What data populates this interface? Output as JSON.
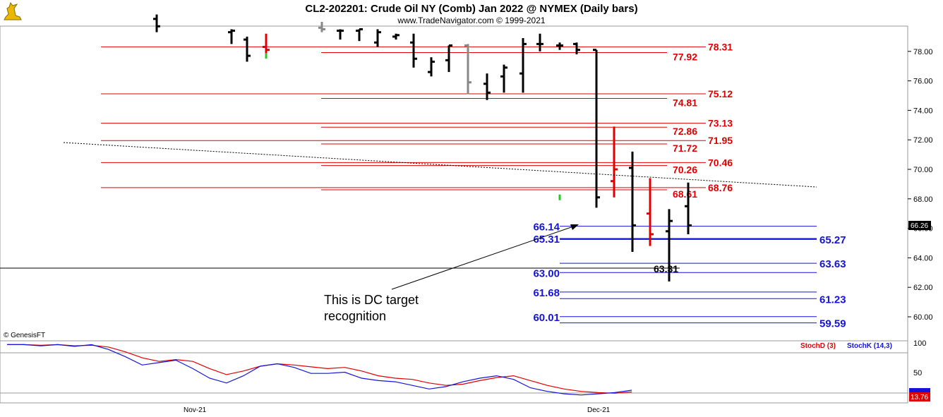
{
  "header": {
    "title": "CL2-202201:  Crude Oil NY (Comb) Jan 2022 @ NYMEX  (Daily bars)",
    "subtitle": "www.TradeNavigator.com © 1999-2021",
    "logo_icon": "genesis-bull-icon"
  },
  "watermark": "© GenesisFT",
  "colors": {
    "red": "#e00000",
    "blue": "#1414d8",
    "black": "#000000",
    "green": "#22c822",
    "gray": "#888888"
  },
  "chart_data": [
    {
      "type": "ohlc",
      "title": "CL2-202201:  Crude Oil NY (Comb) Jan 2022 @ NYMEX  (Daily bars)",
      "x_labels": [
        "Nov-21",
        "Dec-21"
      ],
      "y_ticks": [
        "60.00",
        "62.00",
        "64.00",
        "66.00",
        "68.00",
        "70.00",
        "72.00",
        "74.00",
        "76.00",
        "78.00"
      ],
      "ylim": [
        59.0,
        80.0
      ],
      "last_price_tag": "66.26",
      "bars": [
        {
          "h": 80.5,
          "l": 79.3,
          "o": 80.2,
          "c": 79.7,
          "color": "black"
        },
        {
          "h": 79.5,
          "l": 78.5,
          "o": 79.3,
          "c": 79.4,
          "color": "black"
        },
        {
          "h": 79.0,
          "l": 77.3,
          "o": 78.8,
          "c": 77.7,
          "color": "black"
        },
        {
          "h": 79.2,
          "l": 77.7,
          "o": 78.3,
          "c": 78.1,
          "color": "red"
        },
        {
          "h": 80.0,
          "l": 79.3,
          "o": 79.6,
          "c": 79.5,
          "color": "gray"
        },
        {
          "h": 79.5,
          "l": 78.8,
          "o": 79.4,
          "c": 79.4,
          "color": "black"
        },
        {
          "h": 79.5,
          "l": 78.7,
          "o": 79.4,
          "c": 79.5,
          "color": "black"
        },
        {
          "h": 79.5,
          "l": 78.3,
          "o": 78.6,
          "c": 79.3,
          "color": "black"
        },
        {
          "h": 79.2,
          "l": 78.8,
          "o": 79.0,
          "c": 79.1,
          "color": "black"
        },
        {
          "h": 79.2,
          "l": 76.9,
          "o": 78.6,
          "c": 77.5,
          "color": "black"
        },
        {
          "h": 77.6,
          "l": 76.3,
          "o": 76.6,
          "c": 77.3,
          "color": "black"
        },
        {
          "h": 78.4,
          "l": 76.6,
          "o": 77.4,
          "c": 78.4,
          "color": "black"
        },
        {
          "h": 78.5,
          "l": 75.1,
          "o": 78.4,
          "c": 75.9,
          "color": "gray"
        },
        {
          "h": 76.5,
          "l": 74.7,
          "o": 75.8,
          "c": 75.2,
          "color": "black"
        },
        {
          "h": 77.1,
          "l": 75.2,
          "o": 76.3,
          "c": 76.9,
          "color": "black"
        },
        {
          "h": 78.9,
          "l": 75.2,
          "o": 76.5,
          "c": 78.5,
          "color": "black"
        },
        {
          "h": 79.2,
          "l": 78.0,
          "o": 78.5,
          "c": 78.5,
          "color": "black"
        },
        {
          "h": 78.6,
          "l": 78.1,
          "o": 78.4,
          "c": 78.4,
          "color": "black"
        },
        {
          "h": 78.6,
          "l": 77.8,
          "o": 78.5,
          "c": 78.1,
          "color": "black"
        },
        {
          "h": 78.1,
          "l": 67.4,
          "o": 78.1,
          "c": 68.1,
          "color": "black"
        },
        {
          "h": 72.9,
          "l": 68.1,
          "o": 69.2,
          "c": 70.0,
          "color": "red"
        },
        {
          "h": 71.2,
          "l": 64.4,
          "o": 70.1,
          "c": 66.2,
          "color": "black"
        },
        {
          "h": 69.4,
          "l": 64.8,
          "o": 67.0,
          "c": 65.6,
          "color": "red"
        },
        {
          "h": 67.3,
          "l": 62.4,
          "o": 65.8,
          "c": 66.5,
          "color": "black"
        },
        {
          "h": 69.1,
          "l": 65.6,
          "o": 67.5,
          "c": 66.2,
          "color": "black"
        }
      ]
    },
    {
      "type": "line",
      "title": "",
      "ylabel": "",
      "y_ticks": [
        "100",
        "50"
      ],
      "last_value_tag": "13.76",
      "series": [
        {
          "name": "StochD (3)",
          "color": "#e00000",
          "values": [
            96,
            96,
            95,
            96,
            94,
            95,
            92,
            84,
            74,
            68,
            71,
            68,
            56,
            46,
            52,
            60,
            64,
            62,
            59,
            56,
            58,
            52,
            44,
            40,
            38,
            32,
            28,
            30,
            36,
            41,
            44,
            36,
            28,
            22,
            18,
            16,
            15,
            17
          ]
        },
        {
          "name": "StochK (14,3)",
          "color": "#1414d8",
          "values": [
            96,
            96,
            94,
            96,
            93,
            96,
            88,
            76,
            62,
            66,
            70,
            56,
            40,
            32,
            44,
            60,
            64,
            58,
            48,
            48,
            50,
            40,
            36,
            34,
            28,
            22,
            26,
            34,
            40,
            44,
            38,
            24,
            18,
            14,
            12,
            14,
            16,
            20
          ]
        }
      ]
    }
  ],
  "levels": {
    "red": [
      {
        "left": "77.92",
        "right": "78.31"
      },
      {
        "left": "74.81",
        "right": "75.12"
      },
      {
        "left": "72.86",
        "right": "73.13"
      },
      {
        "left": "71.72",
        "right": "71.95"
      },
      {
        "left": "70.26",
        "right": "70.46"
      },
      {
        "left": "68.61",
        "right": "68.76"
      }
    ],
    "blue_left": [
      "66.14",
      "65.31",
      "63.00",
      "61.68",
      "60.01"
    ],
    "blue_right": [
      "65.27",
      "63.63",
      "61.23",
      "59.59"
    ],
    "black": "63.31"
  },
  "annotation": {
    "line1": "This is DC target",
    "line2": "recognition"
  }
}
